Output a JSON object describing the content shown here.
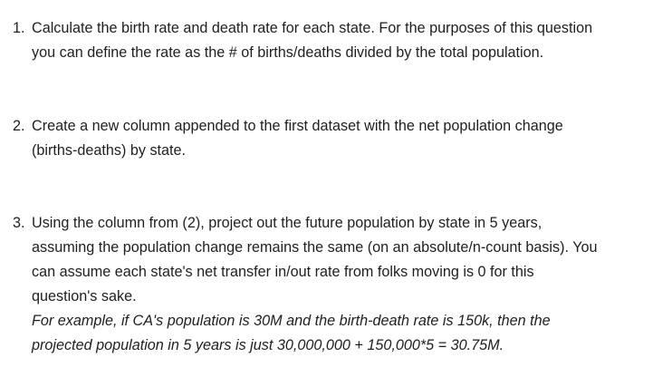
{
  "questions": [
    {
      "number": "1.",
      "lines": [
        "Calculate the birth rate and death rate for each state. For the purposes of this question",
        "you can define the rate as the # of births/deaths divided by the total population."
      ]
    },
    {
      "number": "2.",
      "lines": [
        "Create a new column appended to the first dataset with the net population change",
        "(births-deaths) by state."
      ]
    },
    {
      "number": "3.",
      "lines": [
        "Using the column from (2), project out the future population by state in 5 years,",
        "assuming the population change remains the same (on an absolute/n-count basis). You",
        "can assume each state's net transfer in/out rate from folks moving is 0 for this",
        "question's sake."
      ],
      "example_lines": [
        "For example, if CA's population is 30M and the birth-death rate is 150k, then the",
        "projected population in 5 years is just 30,000,000 + 150,000*5 = 30.75M."
      ]
    }
  ]
}
